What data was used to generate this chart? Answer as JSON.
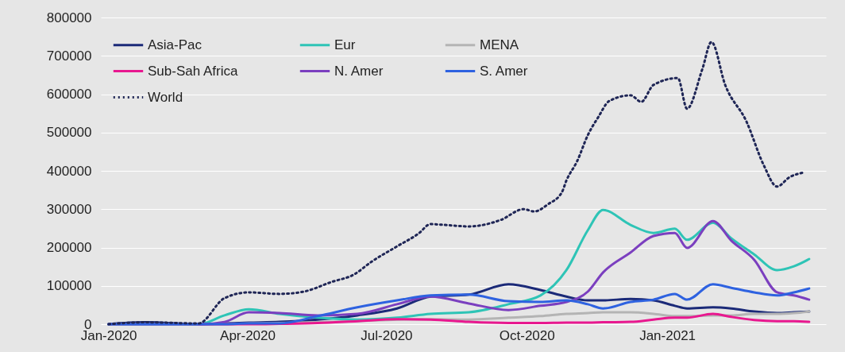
{
  "chart_data": {
    "type": "line",
    "x": [
      "2020-01-01",
      "2020-01-25",
      "2020-02-29",
      "2020-03-17",
      "2020-04-02",
      "2020-04-22",
      "2020-05-17",
      "2020-06-12",
      "2020-07-08",
      "2020-07-30",
      "2020-08-24",
      "2020-09-19",
      "2020-10-10",
      "2020-10-27",
      "2020-11-10",
      "2020-11-20",
      "2020-12-08",
      "2020-12-23",
      "2021-01-06",
      "2021-01-14",
      "2021-01-31",
      "2021-02-12",
      "2021-02-27",
      "2021-03-14",
      "2021-03-25",
      "2021-04-04"
    ],
    "series": [
      {
        "name": "Asia-Pac",
        "color": "#1b2a78",
        "values": [
          0,
          5000,
          0,
          2000,
          4000,
          6000,
          12000,
          23000,
          41000,
          72000,
          77000,
          104000,
          89000,
          72000,
          62000,
          62000,
          66000,
          62000,
          48000,
          41000,
          44000,
          41000,
          33000,
          29000,
          31000,
          33000
        ]
      },
      {
        "name": "Eur",
        "color": "#2ec4b6",
        "values": [
          0,
          0,
          0,
          23000,
          39000,
          27000,
          17000,
          12000,
          17000,
          27000,
          31000,
          52000,
          75000,
          141000,
          245000,
          298000,
          259000,
          238000,
          249000,
          220000,
          265000,
          224000,
          182000,
          141000,
          151000,
          170000
        ]
      },
      {
        "name": "MENA",
        "color": "#b4b4b4",
        "values": [
          0,
          0,
          0,
          0,
          2000,
          3000,
          5000,
          8000,
          12000,
          13000,
          12000,
          17000,
          21000,
          27000,
          29000,
          31000,
          31000,
          27000,
          21000,
          21000,
          23000,
          23000,
          27000,
          27000,
          29000,
          33000
        ]
      },
      {
        "name": "Sub-Sah Africa",
        "color": "#e8188f",
        "values": [
          null,
          null,
          0,
          0,
          0,
          1000,
          3000,
          8000,
          13000,
          12000,
          6000,
          3000,
          3000,
          4000,
          4000,
          5000,
          6000,
          12000,
          17000,
          17000,
          27000,
          19000,
          11000,
          8000,
          8000,
          6000
        ]
      },
      {
        "name": "N. Amer",
        "color": "#7b3fbf",
        "values": [
          0,
          0,
          0,
          6000,
          31000,
          29000,
          23000,
          27000,
          52000,
          72000,
          54000,
          37000,
          48000,
          58000,
          85000,
          135000,
          187000,
          230000,
          238000,
          199000,
          269000,
          218000,
          168000,
          83000,
          75000,
          64000
        ]
      },
      {
        "name": "S. Amer",
        "color": "#2e62e0",
        "values": [
          0,
          0,
          0,
          0,
          2000,
          2000,
          21000,
          44000,
          62000,
          75000,
          77000,
          60000,
          58000,
          62000,
          52000,
          41000,
          58000,
          64000,
          79000,
          64000,
          104000,
          95000,
          83000,
          75000,
          83000,
          93000
        ]
      },
      {
        "name": "World",
        "color": "#1f2656",
        "line_style": "dotted",
        "x": [
          "2020-01-01",
          "2020-01-25",
          "2020-02-29",
          "2020-03-17",
          "2020-04-02",
          "2020-04-22",
          "2020-05-08",
          "2020-05-26",
          "2020-06-10",
          "2020-06-21",
          "2020-07-08",
          "2020-07-22",
          "2020-07-30",
          "2020-08-08",
          "2020-08-24",
          "2020-09-14",
          "2020-09-29",
          "2020-10-06",
          "2020-10-15",
          "2020-10-24",
          "2020-10-27",
          "2020-11-03",
          "2020-11-10",
          "2020-11-17",
          "2020-11-24",
          "2020-12-08",
          "2020-12-15",
          "2020-12-23",
          "2021-01-08",
          "2021-01-14",
          "2021-01-24",
          "2021-01-30",
          "2021-02-08",
          "2021-02-22",
          "2021-03-05",
          "2021-03-14",
          "2021-03-22",
          "2021-04-01"
        ],
        "values": [
          0,
          5000,
          2000,
          68000,
          83000,
          79000,
          85000,
          110000,
          130000,
          162000,
          203000,
          236000,
          261000,
          259000,
          255000,
          272000,
          300000,
          294000,
          313000,
          344000,
          375000,
          425000,
          493000,
          541000,
          582000,
          597000,
          580000,
          624000,
          642000,
          562000,
          665000,
          736000,
          624000,
          528000,
          417000,
          359000,
          383000,
          396000
        ]
      }
    ],
    "xlim": [
      "2019-12-27",
      "2021-04-15"
    ],
    "xticks": [
      {
        "value": "2020-01-01",
        "label": "Jan-2020"
      },
      {
        "value": "2020-04-01",
        "label": "Apr-2020"
      },
      {
        "value": "2020-07-01",
        "label": "Jul-2020"
      },
      {
        "value": "2020-10-01",
        "label": "Oct-2020"
      },
      {
        "value": "2021-01-01",
        "label": "Jan-2021"
      }
    ],
    "ylim": [
      0,
      800000
    ],
    "yticks": [
      0,
      100000,
      200000,
      300000,
      400000,
      500000,
      600000,
      700000,
      800000
    ],
    "grid": "y",
    "legend": "top left",
    "line_style": "solid",
    "marker": "none"
  }
}
